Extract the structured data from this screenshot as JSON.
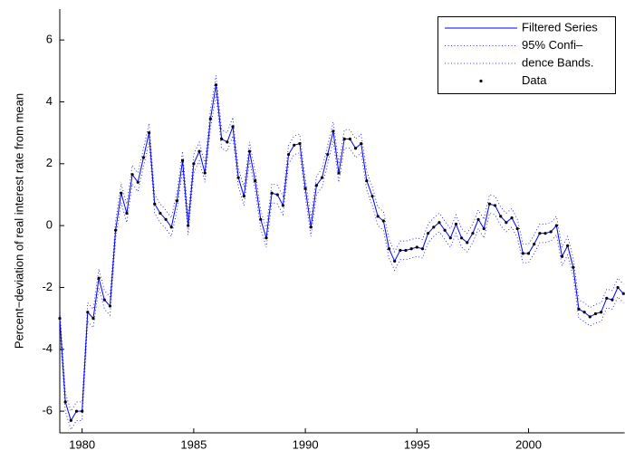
{
  "chart_data": {
    "type": "line",
    "y_label": "Percent−deviation of real interest rate from mean",
    "x": [
      1979,
      1979.25,
      1979.5,
      1979.75,
      1980,
      1980.25,
      1980.5,
      1980.75,
      1981,
      1981.25,
      1981.5,
      1981.75,
      1982,
      1982.25,
      1982.5,
      1982.75,
      1983,
      1983.25,
      1983.5,
      1983.75,
      1984,
      1984.25,
      1984.5,
      1984.75,
      1985,
      1985.25,
      1985.5,
      1985.75,
      1986,
      1986.25,
      1986.5,
      1986.75,
      1987,
      1987.25,
      1987.5,
      1987.75,
      1988,
      1988.25,
      1988.5,
      1988.75,
      1989,
      1989.25,
      1989.5,
      1989.75,
      1990,
      1990.25,
      1990.5,
      1990.75,
      1991,
      1991.25,
      1991.5,
      1991.75,
      1992,
      1992.25,
      1992.5,
      1992.75,
      1993,
      1993.25,
      1993.5,
      1993.75,
      1994,
      1994.25,
      1994.5,
      1994.75,
      1995,
      1995.25,
      1995.5,
      1995.75,
      1996,
      1996.25,
      1996.5,
      1996.75,
      1997,
      1997.25,
      1997.5,
      1997.75,
      1998,
      1998.25,
      1998.5,
      1998.75,
      1999,
      1999.25,
      1999.5,
      1999.75,
      2000,
      2000.25,
      2000.5,
      2000.75,
      2001,
      2001.25,
      2001.5,
      2001.75,
      2002,
      2002.25,
      2002.5,
      2002.75,
      2003,
      2003.25,
      2003.5,
      2003.75,
      2004,
      2004.25
    ],
    "series": [
      {
        "name": "Filtered Series",
        "color": "#0000ff",
        "style": "solid",
        "values": [
          -3.0,
          -5.7,
          -6.3,
          -6.0,
          -6.0,
          -2.8,
          -3.0,
          -1.7,
          -2.4,
          -2.6,
          -0.15,
          1.05,
          0.4,
          1.65,
          1.4,
          2.2,
          3.0,
          0.7,
          0.4,
          0.2,
          -0.05,
          0.8,
          2.1,
          0.0,
          2.0,
          2.4,
          1.7,
          3.45,
          4.55,
          2.8,
          2.7,
          3.2,
          1.55,
          0.95,
          2.4,
          1.45,
          0.2,
          -0.4,
          1.05,
          1.0,
          0.65,
          2.3,
          2.6,
          2.65,
          1.2,
          -0.05,
          1.3,
          1.55,
          2.3,
          3.05,
          1.7,
          2.8,
          2.8,
          2.5,
          2.65,
          1.45,
          0.95,
          0.3,
          0.15,
          -0.75,
          -1.15,
          -0.8,
          -0.8,
          -0.75,
          -0.7,
          -0.75,
          -0.25,
          -0.05,
          0.1,
          -0.15,
          -0.4,
          0.05,
          -0.4,
          -0.55,
          -0.25,
          0.2,
          -0.1,
          0.7,
          0.65,
          0.3,
          0.1,
          0.25,
          -0.1,
          -0.9,
          -0.9,
          -0.6,
          -0.25,
          -0.25,
          -0.2,
          0.0,
          -1.0,
          -0.65,
          -1.35,
          -2.7,
          -2.8,
          -2.95,
          -2.85,
          -2.8,
          -2.35,
          -2.4,
          -2.0,
          -2.2
        ]
      },
      {
        "name": "95% Confi–",
        "color": "#0000ff",
        "style": "dotted",
        "values": [
          -2.7,
          -5.4,
          -6.0,
          -5.7,
          -5.7,
          -2.5,
          -2.7,
          -1.4,
          -2.1,
          -2.3,
          0.15,
          1.35,
          0.7,
          1.95,
          1.7,
          2.5,
          3.3,
          1.0,
          0.7,
          0.5,
          0.25,
          1.1,
          2.4,
          0.3,
          2.3,
          2.7,
          2.0,
          3.75,
          4.85,
          3.1,
          3.0,
          3.5,
          1.85,
          1.25,
          2.7,
          1.75,
          0.5,
          -0.1,
          1.35,
          1.3,
          0.95,
          2.6,
          2.9,
          2.95,
          1.5,
          0.25,
          1.6,
          1.85,
          2.6,
          3.35,
          2.0,
          3.1,
          3.1,
          2.8,
          2.95,
          1.75,
          1.25,
          0.6,
          0.45,
          -0.45,
          -0.85,
          -0.5,
          -0.5,
          -0.45,
          -0.4,
          -0.45,
          0.05,
          0.25,
          0.4,
          0.15,
          -0.1,
          0.35,
          -0.1,
          -0.25,
          0.05,
          0.5,
          0.2,
          1.0,
          0.95,
          0.6,
          0.4,
          0.55,
          0.2,
          -0.6,
          -0.6,
          -0.3,
          0.05,
          0.05,
          0.1,
          0.3,
          -0.7,
          -0.35,
          -1.05,
          -2.4,
          -2.5,
          -2.65,
          -2.55,
          -2.5,
          -2.05,
          -2.1,
          -1.7,
          -1.9
        ]
      },
      {
        "name": "dence Bands.",
        "color": "#0000ff",
        "style": "dotted",
        "values": [
          -3.3,
          -6.0,
          -6.6,
          -6.3,
          -6.3,
          -3.1,
          -3.3,
          -2.0,
          -2.7,
          -2.9,
          -0.45,
          0.75,
          0.1,
          1.35,
          1.1,
          1.9,
          2.7,
          0.4,
          0.1,
          -0.1,
          -0.35,
          0.5,
          1.8,
          -0.3,
          1.7,
          2.1,
          1.4,
          3.15,
          4.25,
          2.5,
          2.4,
          2.9,
          1.25,
          0.65,
          2.1,
          1.15,
          -0.1,
          -0.7,
          0.75,
          0.7,
          0.35,
          2.0,
          2.3,
          2.35,
          0.9,
          -0.35,
          1.0,
          1.25,
          2.0,
          2.75,
          1.4,
          2.5,
          2.5,
          2.2,
          2.35,
          1.15,
          0.65,
          0.0,
          -0.15,
          -1.05,
          -1.45,
          -1.1,
          -1.1,
          -1.05,
          -1.0,
          -1.05,
          -0.55,
          -0.35,
          -0.2,
          -0.45,
          -0.7,
          -0.25,
          -0.7,
          -0.85,
          -0.55,
          -0.1,
          -0.4,
          0.4,
          0.35,
          0.0,
          -0.2,
          -0.05,
          -0.4,
          -1.2,
          -1.2,
          -0.9,
          -0.55,
          -0.55,
          -0.5,
          -0.3,
          -1.3,
          -0.95,
          -1.65,
          -3.0,
          -3.1,
          -3.25,
          -3.15,
          -3.1,
          -2.65,
          -2.7,
          -2.3,
          -2.5
        ]
      },
      {
        "name": "Data",
        "color": "#000000",
        "style": "marker",
        "values": [
          -3.0,
          -5.7,
          -6.3,
          -6.0,
          -6.0,
          -2.8,
          -3.0,
          -1.7,
          -2.4,
          -2.6,
          -0.15,
          1.05,
          0.4,
          1.65,
          1.4,
          2.2,
          3.0,
          0.7,
          0.4,
          0.2,
          -0.05,
          0.8,
          2.1,
          0.0,
          2.0,
          2.4,
          1.7,
          3.45,
          4.55,
          2.8,
          2.7,
          3.2,
          1.55,
          0.95,
          2.4,
          1.45,
          0.2,
          -0.4,
          1.05,
          1.0,
          0.65,
          2.3,
          2.6,
          2.65,
          1.2,
          -0.05,
          1.3,
          1.55,
          2.3,
          3.05,
          1.7,
          2.8,
          2.8,
          2.5,
          2.65,
          1.45,
          0.95,
          0.3,
          0.15,
          -0.75,
          -1.15,
          -0.8,
          -0.8,
          -0.75,
          -0.7,
          -0.75,
          -0.25,
          -0.05,
          0.1,
          -0.15,
          -0.4,
          0.05,
          -0.4,
          -0.55,
          -0.25,
          0.2,
          -0.1,
          0.7,
          0.65,
          0.3,
          0.1,
          0.25,
          -0.1,
          -0.9,
          -0.9,
          -0.6,
          -0.25,
          -0.25,
          -0.2,
          0.0,
          -1.0,
          -0.65,
          -1.35,
          -2.7,
          -2.8,
          -2.95,
          -2.85,
          -2.8,
          -2.35,
          -2.4,
          -2.0,
          -2.2
        ]
      }
    ],
    "xlim": [
      1979,
      2004.3
    ],
    "xticks": [
      1980,
      1985,
      1990,
      1995,
      2000
    ],
    "ylim": [
      -6.7,
      7
    ],
    "yticks": [
      -6,
      -4,
      -2,
      0,
      2,
      4,
      6
    ],
    "legend": "upper-right"
  }
}
